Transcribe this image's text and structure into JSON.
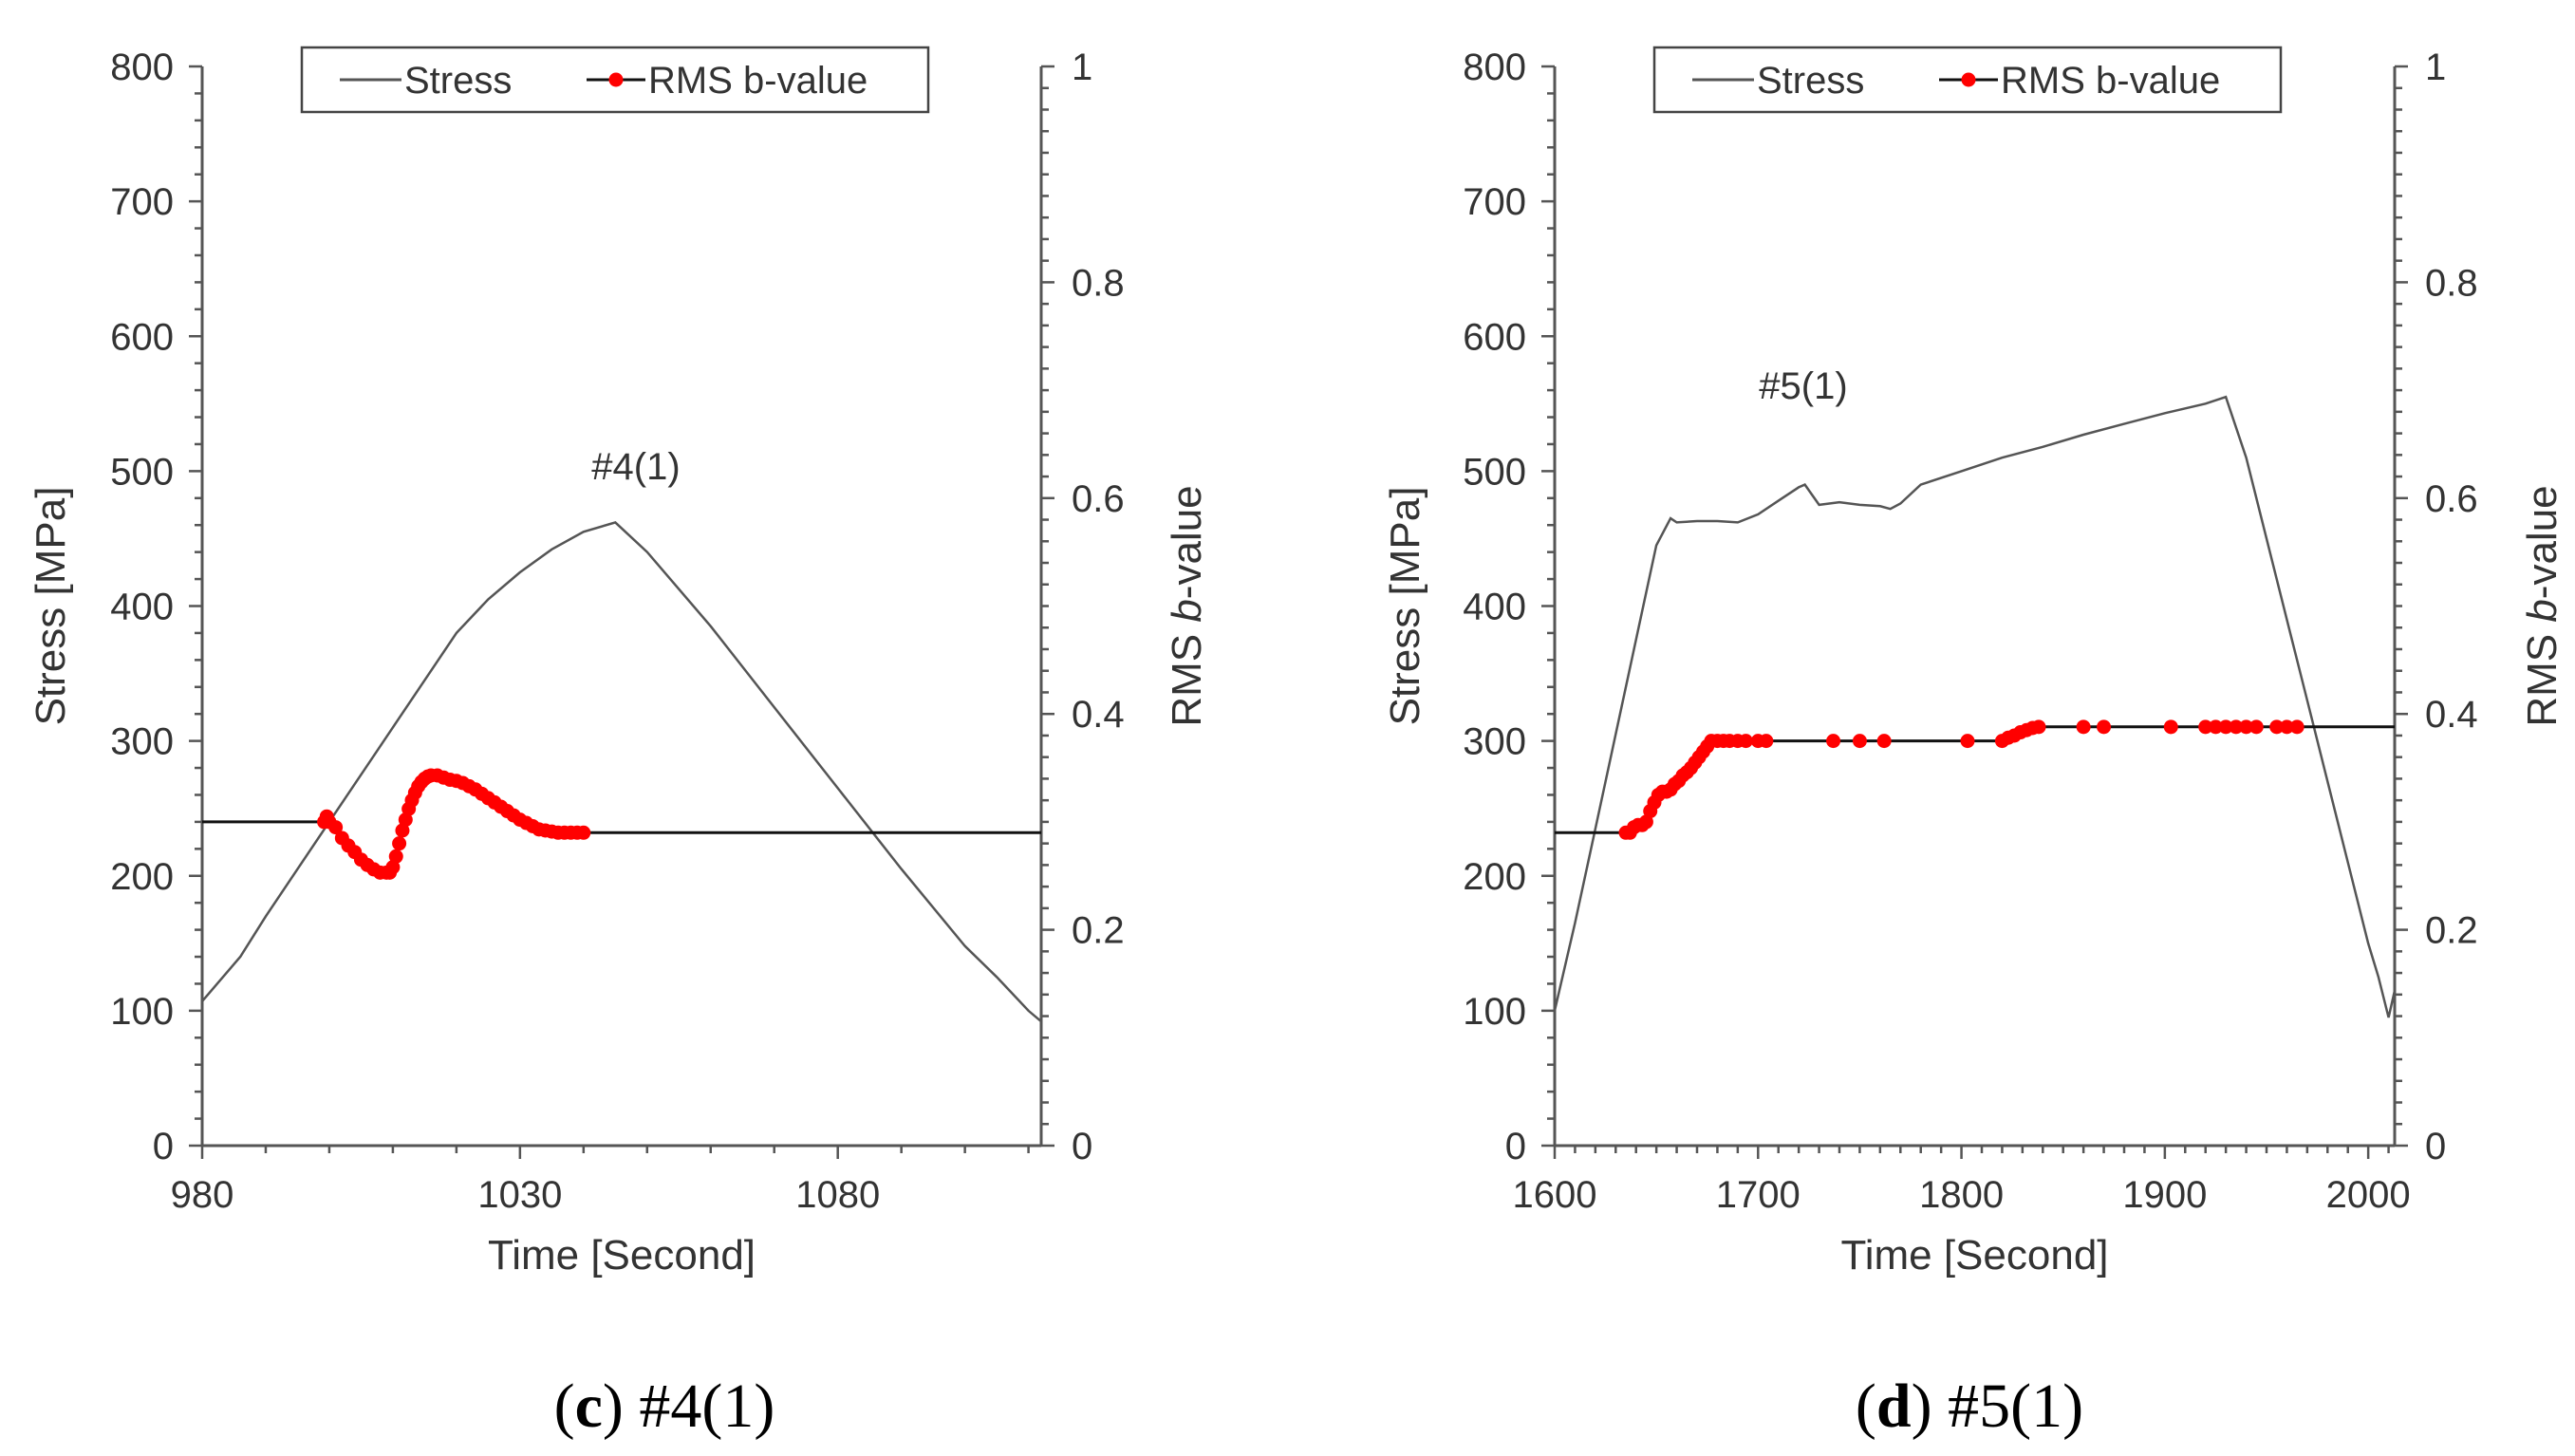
{
  "chart_data": [
    {
      "type": "line",
      "panel_caption_letter": "c",
      "panel_caption_rest": " #4(1)",
      "annotation": "#4(1)",
      "xlabel": "Time [Second]",
      "ylabel": "Stress [MPa]",
      "y2label_prefix": "RMS ",
      "y2label_italic": "b",
      "y2label_suffix": "-value",
      "xlim": [
        980,
        1112
      ],
      "ylim": [
        0,
        800
      ],
      "y2lim": [
        0,
        1
      ],
      "xticks": [
        980,
        1030,
        1080
      ],
      "yticks": [
        0,
        100,
        200,
        300,
        400,
        500,
        600,
        700,
        800
      ],
      "y2ticks": [
        0,
        0.2,
        0.4,
        0.6,
        0.8,
        1
      ],
      "legend": [
        "Stress",
        "RMS b-value"
      ],
      "series": [
        {
          "name": "Stress",
          "axis": "left",
          "color": "#555555",
          "x": [
            980,
            986,
            990,
            995,
            1000,
            1005,
            1010,
            1015,
            1020,
            1025,
            1030,
            1035,
            1040,
            1045,
            1050,
            1060,
            1070,
            1080,
            1090,
            1100,
            1105,
            1110,
            1112
          ],
          "y": [
            107,
            140,
            170,
            205,
            240,
            275,
            310,
            345,
            380,
            405,
            425,
            442,
            455,
            462,
            440,
            385,
            325,
            265,
            205,
            148,
            125,
            100,
            92
          ]
        },
        {
          "name": "RMS b-value",
          "axis": "right",
          "color": "#ff0000",
          "x": [
            980,
            999.2,
            999.6,
            1000,
            1001,
            1002,
            1003,
            1004,
            1005,
            1006,
            1007,
            1008,
            1009,
            1009.5,
            1010,
            1010.5,
            1011,
            1011.5,
            1012,
            1012.5,
            1013,
            1013.5,
            1014,
            1014.5,
            1015,
            1015.5,
            1016,
            1017,
            1018,
            1019,
            1020,
            1021,
            1022,
            1023,
            1024,
            1025,
            1026,
            1027,
            1028,
            1029,
            1030,
            1031,
            1032,
            1033,
            1034,
            1035,
            1036,
            1037,
            1038,
            1039,
            1040,
            1112
          ],
          "y": [
            0.3,
            0.3,
            0.305,
            0.3,
            0.295,
            0.285,
            0.278,
            0.272,
            0.265,
            0.26,
            0.256,
            0.253,
            0.253,
            0.253,
            0.258,
            0.268,
            0.28,
            0.292,
            0.302,
            0.312,
            0.32,
            0.327,
            0.333,
            0.337,
            0.34,
            0.342,
            0.343,
            0.343,
            0.341,
            0.339,
            0.338,
            0.336,
            0.333,
            0.33,
            0.326,
            0.322,
            0.318,
            0.314,
            0.31,
            0.306,
            0.302,
            0.299,
            0.296,
            0.293,
            0.292,
            0.291,
            0.29,
            0.29,
            0.29,
            0.29,
            0.29,
            0.29
          ],
          "markers_from": 1,
          "markers_to": 50
        }
      ]
    },
    {
      "type": "line",
      "panel_caption_letter": "d",
      "panel_caption_rest": " #5(1)",
      "annotation": "#5(1)",
      "xlabel": "Time [Second]",
      "ylabel": "Stress [MPa]",
      "y2label_prefix": "RMS ",
      "y2label_italic": "b",
      "y2label_suffix": "-value",
      "xlim": [
        1600,
        2013
      ],
      "ylim": [
        0,
        800
      ],
      "y2lim": [
        0,
        1
      ],
      "xticks": [
        1600,
        1700,
        1800,
        1900,
        2000
      ],
      "yticks": [
        0,
        100,
        200,
        300,
        400,
        500,
        600,
        700,
        800
      ],
      "y2ticks": [
        0,
        0.2,
        0.4,
        0.6,
        0.8,
        1
      ],
      "legend": [
        "Stress",
        "RMS b-value"
      ],
      "series": [
        {
          "name": "Stress",
          "axis": "left",
          "color": "#555555",
          "x": [
            1600,
            1610,
            1620,
            1630,
            1640,
            1650,
            1657,
            1660,
            1670,
            1680,
            1690,
            1700,
            1710,
            1720,
            1723,
            1730,
            1740,
            1750,
            1760,
            1765,
            1770,
            1780,
            1800,
            1820,
            1840,
            1860,
            1880,
            1900,
            1920,
            1930,
            1940,
            1950,
            1960,
            1970,
            1980,
            1990,
            2000,
            2005,
            2010,
            2013
          ],
          "y": [
            100,
            165,
            235,
            305,
            375,
            445,
            465,
            462,
            463,
            463,
            462,
            468,
            478,
            488,
            490,
            475,
            477,
            475,
            474,
            472,
            476,
            490,
            500,
            510,
            518,
            527,
            535,
            543,
            550,
            555,
            510,
            450,
            390,
            330,
            270,
            210,
            150,
            125,
            95,
            115
          ]
        },
        {
          "name": "RMS b-value",
          "axis": "right",
          "color": "#ff0000",
          "x": [
            1600,
            1635,
            1637,
            1639,
            1641,
            1643,
            1645,
            1647,
            1649,
            1651,
            1653,
            1655,
            1657,
            1659,
            1661,
            1663,
            1665,
            1667,
            1669,
            1671,
            1673,
            1675,
            1677,
            1680,
            1683,
            1686,
            1690,
            1694,
            1700,
            1704,
            1737,
            1750,
            1762,
            1803,
            1820,
            1823,
            1826,
            1829,
            1832,
            1835,
            1838,
            1860,
            1870,
            1903,
            1920,
            1925,
            1930,
            1935,
            1940,
            1945,
            1955,
            1960,
            1965,
            2013
          ],
          "y": [
            0.29,
            0.29,
            0.29,
            0.295,
            0.297,
            0.297,
            0.3,
            0.31,
            0.318,
            0.325,
            0.328,
            0.328,
            0.33,
            0.335,
            0.338,
            0.343,
            0.346,
            0.35,
            0.355,
            0.36,
            0.365,
            0.37,
            0.375,
            0.375,
            0.375,
            0.375,
            0.375,
            0.375,
            0.375,
            0.375,
            0.375,
            0.375,
            0.375,
            0.375,
            0.375,
            0.378,
            0.38,
            0.383,
            0.385,
            0.387,
            0.388,
            0.388,
            0.388,
            0.388,
            0.388,
            0.388,
            0.388,
            0.388,
            0.388,
            0.388,
            0.388,
            0.388,
            0.388,
            0.388
          ],
          "markers_from": 1,
          "markers_to": 52
        }
      ]
    }
  ]
}
